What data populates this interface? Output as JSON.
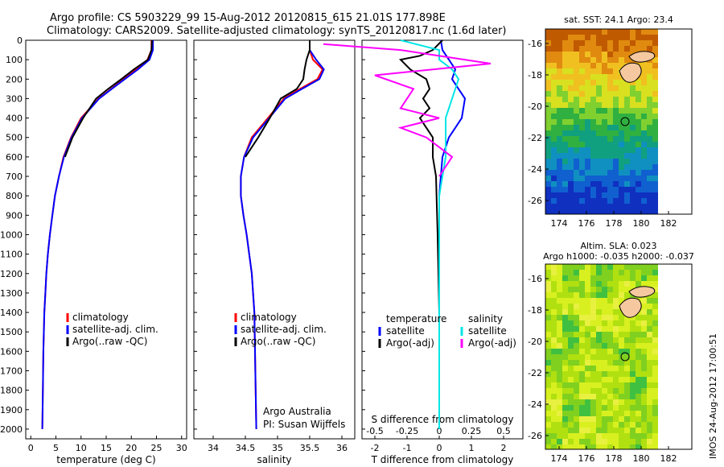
{
  "header": {
    "line1": "Argo profile: CS 5903229_99 15-Aug-2012 20120815_615 21.01S 177.898E",
    "line2": "Climatology: CARS2009. Satellite-adjusted climatology: synTS_20120817.nc (1.6d later)"
  },
  "side_stamp": "IMOS 24-Aug-2012 17:00:51",
  "credit": {
    "line1": "Argo Australia",
    "line2": "PI: Susan Wijffels"
  },
  "colors": {
    "climatology": "#ff0000",
    "satellite": "#0000ff",
    "argo": "#000000",
    "sal_satellite": "#00e5e5",
    "sal_argo": "#ff00ff"
  },
  "chart_data": [
    {
      "type": "line",
      "xlabel": "temperature (deg C)",
      "ylabel": "",
      "xlim": [
        -1,
        31
      ],
      "ylim": [
        2050,
        0
      ],
      "xticks": [
        "0",
        "5",
        "10",
        "15",
        "20",
        "25",
        "30"
      ],
      "yticks": [
        "0",
        "100",
        "200",
        "300",
        "400",
        "500",
        "600",
        "700",
        "800",
        "900",
        "1000",
        "1100",
        "1200",
        "1300",
        "1400",
        "1500",
        "1600",
        "1700",
        "1800",
        "1900",
        "2000"
      ],
      "legend": [
        "climatology",
        "satellite-adj. clim.",
        "Argo(..raw -QC)"
      ],
      "series": [
        {
          "name": "climatology",
          "x": [
            24.0,
            24.0,
            23.2,
            21.0,
            18.5,
            16.0,
            13.5,
            10.0,
            8.0,
            6.5,
            5.6,
            4.8,
            4.3,
            3.8,
            3.4,
            3.1,
            2.9,
            2.7,
            2.6,
            2.5,
            2.4,
            2.3
          ],
          "y": [
            0,
            50,
            100,
            150,
            200,
            250,
            300,
            400,
            500,
            600,
            700,
            800,
            900,
            1000,
            1100,
            1200,
            1300,
            1400,
            1500,
            1600,
            1800,
            2000
          ]
        },
        {
          "name": "satellite-adj. clim.",
          "x": [
            24.3,
            24.3,
            23.6,
            21.3,
            18.7,
            16.1,
            13.6,
            10.2,
            8.1,
            6.6,
            5.6,
            4.8,
            4.3,
            3.8,
            3.4,
            3.1,
            2.9,
            2.7,
            2.6,
            2.5,
            2.4,
            2.3
          ],
          "y": [
            0,
            50,
            100,
            150,
            200,
            250,
            300,
            400,
            500,
            600,
            700,
            800,
            900,
            1000,
            1100,
            1200,
            1300,
            1400,
            1500,
            1600,
            1800,
            2000
          ]
        },
        {
          "name": "Argo(..raw -QC)",
          "x": [
            24.1,
            24.0,
            23.3,
            20.5,
            18.0,
            15.4,
            13.0,
            10.4,
            8.3,
            6.8
          ],
          "y": [
            0,
            50,
            100,
            150,
            200,
            250,
            300,
            400,
            500,
            600
          ]
        }
      ]
    },
    {
      "type": "line",
      "xlabel": "salinity",
      "xlim": [
        33.7,
        36.2
      ],
      "ylim": [
        2050,
        0
      ],
      "xticks": [
        "34",
        "34.5",
        "35",
        "35.5",
        "36"
      ],
      "legend": [
        "climatology",
        "satellite-adj. clim.",
        "Argo(..raw -QC)"
      ],
      "series": [
        {
          "name": "climatology",
          "x": [
            35.5,
            35.5,
            35.55,
            35.7,
            35.62,
            35.35,
            35.1,
            34.85,
            34.6,
            34.48,
            34.43,
            34.43,
            34.47,
            34.52,
            34.56,
            34.6,
            34.62,
            34.64,
            34.65,
            34.66,
            34.67
          ],
          "y": [
            0,
            50,
            100,
            150,
            200,
            250,
            300,
            400,
            500,
            600,
            700,
            800,
            900,
            1000,
            1100,
            1200,
            1300,
            1400,
            1600,
            1800,
            2000
          ]
        },
        {
          "name": "satellite-adj. clim.",
          "x": [
            35.5,
            35.5,
            35.6,
            35.72,
            35.65,
            35.38,
            35.12,
            34.87,
            34.62,
            34.48,
            34.43,
            34.43,
            34.47,
            34.52,
            34.56,
            34.6,
            34.62,
            34.64,
            34.65,
            34.66,
            34.67
          ],
          "y": [
            0,
            50,
            100,
            150,
            200,
            250,
            300,
            400,
            500,
            600,
            700,
            800,
            900,
            1000,
            1100,
            1200,
            1300,
            1400,
            1600,
            1800,
            2000
          ]
        },
        {
          "name": "Argo(..raw -QC)",
          "x": [
            35.5,
            35.5,
            35.45,
            35.42,
            35.4,
            35.3,
            35.05,
            34.88,
            34.7,
            34.5
          ],
          "y": [
            0,
            50,
            100,
            150,
            200,
            250,
            300,
            400,
            500,
            600
          ]
        }
      ]
    },
    {
      "type": "line",
      "xlabel": "T difference from climatology",
      "xlabel2": "S difference from climatology",
      "xlim": [
        -2.4,
        2.6
      ],
      "ylim": [
        2050,
        0
      ],
      "xticks": [
        "-2",
        "-1",
        "0",
        "1",
        "2"
      ],
      "xticks2": [
        "-0.5",
        "-0.25",
        "0",
        "0.25",
        "0.5"
      ],
      "legend_title_t": "temperature",
      "legend_title_s": "salinity",
      "legend_t": [
        "satellite",
        "Argo(-adj)"
      ],
      "legend_s": [
        "satellite",
        "Argo(-adj)"
      ],
      "series": [
        {
          "name": "satellite",
          "x": [
            0.05,
            0.1,
            0.3,
            0.5,
            0.4,
            0.6,
            0.8,
            0.7,
            0.5,
            0.3,
            0.2,
            0.1,
            0.05,
            0.0,
            0.0,
            0.0,
            0.0,
            0.0
          ],
          "y": [
            0,
            50,
            100,
            150,
            200,
            250,
            300,
            400,
            450,
            500,
            550,
            600,
            700,
            800,
            1000,
            1200,
            1600,
            2000
          ]
        },
        {
          "name": "Argo(-adj)",
          "x": [
            0.1,
            -0.2,
            -0.6,
            -1.2,
            -0.9,
            -0.4,
            -0.3,
            -0.5,
            -0.3,
            -0.6,
            -0.4,
            -0.2,
            -0.2,
            -0.1,
            -0.05,
            0.0
          ],
          "y": [
            0,
            50,
            80,
            100,
            150,
            200,
            250,
            300,
            350,
            400,
            450,
            500,
            600,
            700,
            1000,
            1400
          ]
        },
        {
          "name": "satellite",
          "x": [
            -0.3,
            0.0,
            0.0,
            0.1,
            0.15,
            0.1,
            0.05,
            0.05,
            0.0,
            0.0,
            0.0
          ],
          "y": [
            0,
            50,
            100,
            150,
            200,
            300,
            400,
            600,
            800,
            1200,
            2000
          ]
        },
        {
          "name": "Argo(-adj)",
          "x": [
            -0.9,
            -0.3,
            0.4,
            -0.5,
            -0.2,
            -0.3,
            0.0,
            -0.3,
            -0.1,
            0.1,
            0.0
          ],
          "y": [
            20,
            50,
            120,
            180,
            250,
            350,
            400,
            450,
            500,
            600,
            700
          ]
        }
      ]
    }
  ],
  "maps": [
    {
      "title": "sat. SST: 24.1  Argo: 23.4",
      "subtitle": "",
      "xticks": [
        "174",
        "176",
        "178",
        "180",
        "182"
      ],
      "yticks": [
        "-16",
        "-18",
        "-20",
        "-22",
        "-24",
        "-26"
      ],
      "palette": "sst"
    },
    {
      "title": "Altim. SLA: 0.023",
      "subtitle": "Argo h1000: -0.035 h2000: -0.037",
      "xticks": [
        "174",
        "176",
        "178",
        "180",
        "182"
      ],
      "yticks": [
        "-16",
        "-18",
        "-20",
        "-22",
        "-24",
        "-26"
      ],
      "palette": "sla"
    }
  ]
}
